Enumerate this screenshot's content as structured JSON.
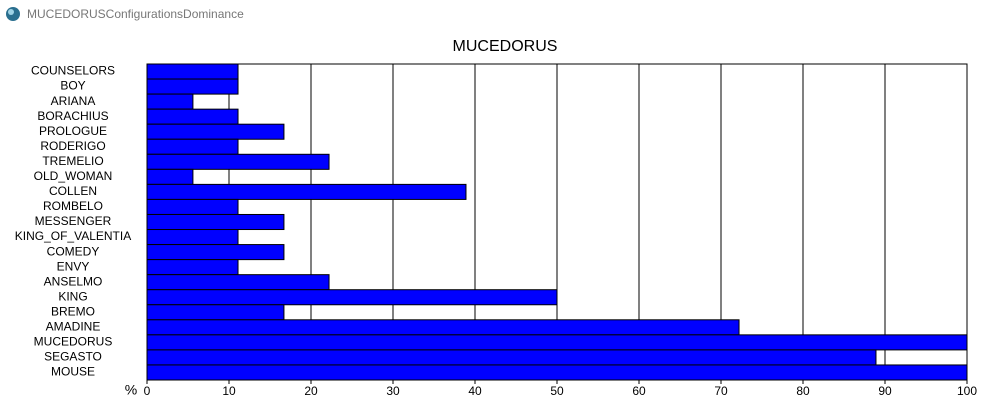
{
  "window_title": "MUCEDORUSConfigurationsDominance",
  "chart_data": {
    "type": "bar",
    "orientation": "horizontal",
    "title": "MUCEDORUS",
    "xlabel": "%",
    "categories": [
      "COUNSELORS",
      "BOY",
      "ARIANA",
      "BORACHIUS",
      "PROLOGUE",
      "RODERIGO",
      "TREMELIO",
      "OLD_WOMAN",
      "COLLEN",
      "ROMBELO",
      "MESSENGER",
      "KING_OF_VALENTIA",
      "COMEDY",
      "ENVY",
      "ANSELMO",
      "KING",
      "BREMO",
      "AMADINE",
      "MUCEDORUS",
      "SEGASTO",
      "MOUSE"
    ],
    "values": [
      11.1,
      11.1,
      5.6,
      11.1,
      16.7,
      11.1,
      22.2,
      5.6,
      38.9,
      11.1,
      16.7,
      11.1,
      16.7,
      11.1,
      22.2,
      50,
      16.7,
      72.2,
      100,
      88.9,
      100
    ],
    "color": "#0000ff",
    "xlim": [
      0,
      100
    ],
    "xticks": [
      0,
      10,
      20,
      30,
      40,
      50,
      60,
      70,
      80,
      90,
      100
    ],
    "grid": true
  }
}
